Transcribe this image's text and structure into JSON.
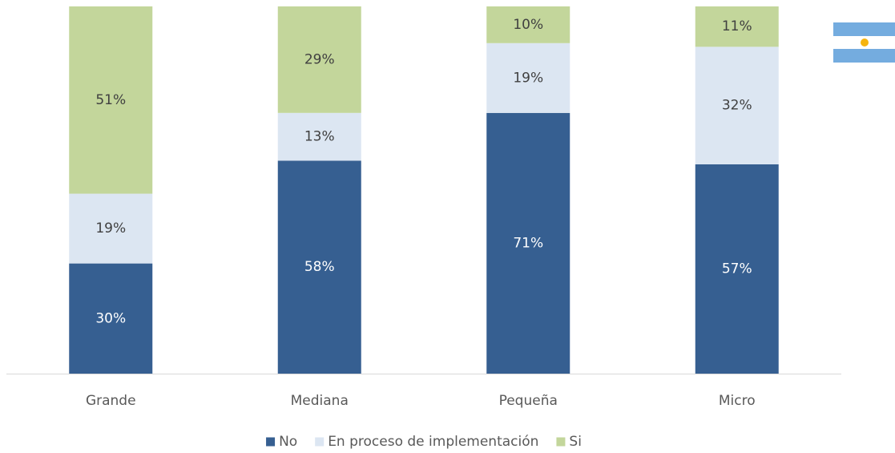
{
  "chart_data": {
    "type": "stacked_bar",
    "categories": [
      "Grande",
      "Mediana",
      "Pequeña",
      "Micro"
    ],
    "series": [
      {
        "name": "No",
        "color": "#365f91",
        "values": [
          30,
          58,
          71,
          57
        ],
        "value_labels": [
          "30%",
          "58%",
          "71%",
          "57%"
        ]
      },
      {
        "name": "En proceso de implementación",
        "color": "#dce6f2",
        "values": [
          19,
          13,
          19,
          32
        ],
        "value_labels": [
          "19%",
          "13%",
          "19%",
          "32%"
        ]
      },
      {
        "name": "Si",
        "color": "#c3d69b",
        "values": [
          51,
          29,
          10,
          11
        ],
        "value_labels": [
          "51%",
          "29%",
          "10%",
          "11%"
        ]
      }
    ],
    "ylim": [
      0,
      100
    ],
    "legend": "bottom"
  }
}
